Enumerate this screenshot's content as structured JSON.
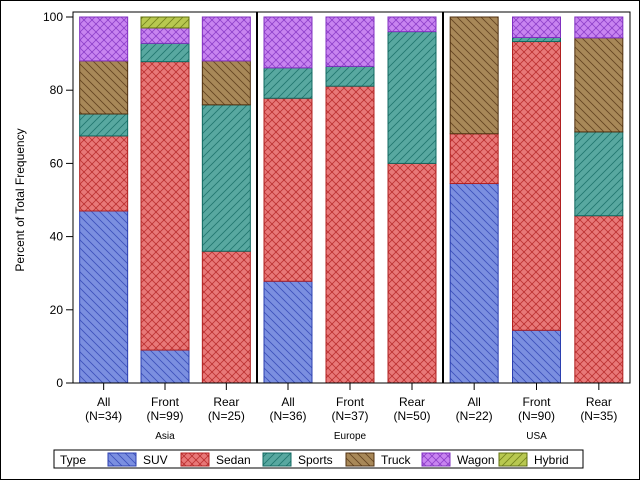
{
  "chart_data": {
    "type": "bar",
    "stacked": true,
    "ylabel": "Percent of Total Frequency",
    "ylim": [
      0,
      100
    ],
    "yticks": [
      0,
      20,
      40,
      60,
      80,
      100
    ],
    "grid": false,
    "legend": {
      "title": "Type",
      "placement": "bottom",
      "items": [
        {
          "name": "SUV",
          "color": "#7b8fe0",
          "stroke": "#2b3fb0",
          "pattern": "diag-down"
        },
        {
          "name": "Sedan",
          "color": "#e87878",
          "stroke": "#b02020",
          "pattern": "crosshatch"
        },
        {
          "name": "Sports",
          "color": "#58a8a0",
          "stroke": "#106860",
          "pattern": "diag-up"
        },
        {
          "name": "Truck",
          "color": "#a88858",
          "stroke": "#503010",
          "pattern": "diag-down"
        },
        {
          "name": "Wagon",
          "color": "#c884f0",
          "stroke": "#8030c0",
          "pattern": "crosshatch"
        },
        {
          "name": "Hybrid",
          "color": "#b8c850",
          "stroke": "#607010",
          "pattern": "diag-up"
        }
      ]
    },
    "groups": [
      {
        "label": "Asia",
        "bars": [
          {
            "line1": "All",
            "line2": "(N=34)",
            "values": [
              47,
              20.5,
              6,
              14.5,
              12,
              0
            ]
          },
          {
            "line1": "Front",
            "line2": "(N=99)",
            "values": [
              9,
              78.8,
              5,
              0,
              4.2,
              3
            ]
          },
          {
            "line1": "Rear",
            "line2": "(N=25)",
            "values": [
              0,
              36,
              40,
              12,
              12,
              0
            ]
          }
        ]
      },
      {
        "label": "Europe",
        "bars": [
          {
            "line1": "All",
            "line2": "(N=36)",
            "values": [
              27.8,
              50,
              8.3,
              0,
              13.9,
              0
            ]
          },
          {
            "line1": "Front",
            "line2": "(N=37)",
            "values": [
              0,
              81.1,
              5.4,
              0,
              13.5,
              0
            ]
          },
          {
            "line1": "Rear",
            "line2": "(N=50)",
            "values": [
              0,
              60,
              36,
              0,
              4,
              0
            ]
          }
        ]
      },
      {
        "label": "USA",
        "bars": [
          {
            "line1": "All",
            "line2": "(N=22)",
            "values": [
              54.5,
              13.6,
              0,
              31.9,
              0,
              0
            ]
          },
          {
            "line1": "Front",
            "line2": "(N=90)",
            "values": [
              14.4,
              78.9,
              1.1,
              0,
              5.6,
              0
            ]
          },
          {
            "line1": "Rear",
            "line2": "(N=35)",
            "values": [
              0,
              45.7,
              22.9,
              25.7,
              5.7,
              0
            ]
          }
        ]
      }
    ]
  }
}
